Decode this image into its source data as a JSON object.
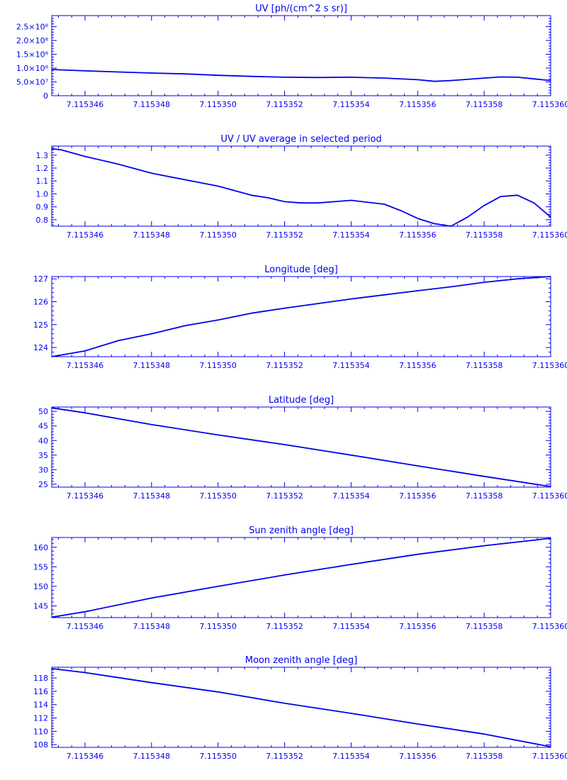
{
  "chart_data": [
    {
      "type": "line",
      "title": "UV [ph/(cm^2 s sr)]",
      "xlabel": "",
      "ylabel": "",
      "xlim": [
        7.115345,
        7.11536
      ],
      "ylim": [
        0,
        290000000
      ],
      "x_ticks": [
        7.115346,
        7.115348,
        7.11535,
        7.115352,
        7.115354,
        7.115356,
        7.115358,
        7.11536
      ],
      "x_tick_labels": [
        "7.115346",
        "7.115348",
        "7.115350",
        "7.115352",
        "7.115354",
        "7.115356",
        "7.115358",
        "7.115360"
      ],
      "y_ticks": [
        0,
        50000000,
        100000000,
        150000000,
        200000000,
        250000000
      ],
      "y_tick_labels": [
        "0",
        "5.0×10⁷",
        "1.0×10⁸",
        "1.5×10⁸",
        "2.0×10⁸",
        "2.5×10⁸"
      ],
      "x": [
        7.115345,
        7.115346,
        7.115347,
        7.115348,
        7.115349,
        7.11535,
        7.115351,
        7.115352,
        7.115353,
        7.115354,
        7.115355,
        7.115356,
        7.1153565,
        7.115357,
        7.115358,
        7.1153585,
        7.115359,
        7.11536
      ],
      "y": [
        95000000,
        90000000,
        86000000,
        82000000,
        79000000,
        74000000,
        70000000,
        67000000,
        66000000,
        67000000,
        64000000,
        58000000,
        52000000,
        55000000,
        64000000,
        68000000,
        67000000,
        55000000
      ]
    },
    {
      "type": "line",
      "title": "UV / UV average in selected period",
      "xlabel": "",
      "ylabel": "",
      "xlim": [
        7.115345,
        7.11536
      ],
      "ylim": [
        0.75,
        1.37
      ],
      "x_ticks": [
        7.115346,
        7.115348,
        7.11535,
        7.115352,
        7.115354,
        7.115356,
        7.115358,
        7.11536
      ],
      "x_tick_labels": [
        "7.115346",
        "7.115348",
        "7.115350",
        "7.115352",
        "7.115354",
        "7.115356",
        "7.115358",
        "7.115360"
      ],
      "y_ticks": [
        0.8,
        0.9,
        1.0,
        1.1,
        1.2,
        1.3
      ],
      "y_tick_labels": [
        "0.8",
        "0.9",
        "1.0",
        "1.1",
        "1.2",
        "1.3"
      ],
      "x": [
        7.115345,
        7.1153453,
        7.115346,
        7.115347,
        7.115348,
        7.115349,
        7.11535,
        7.115351,
        7.1153515,
        7.115352,
        7.1153525,
        7.115353,
        7.1153535,
        7.115354,
        7.115355,
        7.1153555,
        7.115356,
        7.1153565,
        7.115357,
        7.1153575,
        7.115358,
        7.1153585,
        7.115359,
        7.1153595,
        7.11536
      ],
      "y": [
        1.35,
        1.34,
        1.29,
        1.23,
        1.16,
        1.11,
        1.06,
        0.99,
        0.97,
        0.94,
        0.93,
        0.93,
        0.94,
        0.95,
        0.92,
        0.87,
        0.81,
        0.77,
        0.75,
        0.82,
        0.91,
        0.98,
        0.99,
        0.93,
        0.82
      ]
    },
    {
      "type": "line",
      "title": "Longitude [deg]",
      "xlabel": "",
      "ylabel": "",
      "xlim": [
        7.115345,
        7.11536
      ],
      "ylim": [
        123.6,
        127.1
      ],
      "x_ticks": [
        7.115346,
        7.115348,
        7.11535,
        7.115352,
        7.115354,
        7.115356,
        7.115358,
        7.11536
      ],
      "x_tick_labels": [
        "7.115346",
        "7.115348",
        "7.115350",
        "7.115352",
        "7.115354",
        "7.115356",
        "7.115358",
        "7.115360"
      ],
      "y_ticks": [
        124,
        125,
        126,
        127
      ],
      "y_tick_labels": [
        "124",
        "125",
        "126",
        "127"
      ],
      "x": [
        7.115345,
        7.115346,
        7.115347,
        7.115348,
        7.115349,
        7.11535,
        7.115351,
        7.115352,
        7.115353,
        7.115354,
        7.115355,
        7.115356,
        7.115357,
        7.115358,
        7.115359,
        7.11536
      ],
      "y": [
        123.6,
        123.85,
        124.3,
        124.6,
        124.95,
        125.2,
        125.5,
        125.72,
        125.92,
        126.12,
        126.3,
        126.48,
        126.65,
        126.85,
        127.0,
        127.1
      ]
    },
    {
      "type": "line",
      "title": "Latitude [deg]",
      "xlabel": "",
      "ylabel": "",
      "xlim": [
        7.115345,
        7.11536
      ],
      "ylim": [
        24,
        51.5
      ],
      "x_ticks": [
        7.115346,
        7.115348,
        7.11535,
        7.115352,
        7.115354,
        7.115356,
        7.115358,
        7.11536
      ],
      "x_tick_labels": [
        "7.115346",
        "7.115348",
        "7.115350",
        "7.115352",
        "7.115354",
        "7.115356",
        "7.115358",
        "7.115360"
      ],
      "y_ticks": [
        25,
        30,
        35,
        40,
        45,
        50
      ],
      "y_tick_labels": [
        "25",
        "30",
        "35",
        "40",
        "45",
        "50"
      ],
      "x": [
        7.115345,
        7.115346,
        7.115348,
        7.11535,
        7.115352,
        7.115354,
        7.115356,
        7.115358,
        7.11536
      ],
      "y": [
        51.2,
        49.5,
        45.5,
        41.9,
        38.6,
        35.0,
        31.3,
        27.7,
        24.2
      ]
    },
    {
      "type": "line",
      "title": "Sun zenith angle [deg]",
      "xlabel": "",
      "ylabel": "",
      "xlim": [
        7.115345,
        7.11536
      ],
      "ylim": [
        142,
        162.5
      ],
      "x_ticks": [
        7.115346,
        7.115348,
        7.11535,
        7.115352,
        7.115354,
        7.115356,
        7.115358,
        7.11536
      ],
      "x_tick_labels": [
        "7.115346",
        "7.115348",
        "7.115350",
        "7.115352",
        "7.115354",
        "7.115356",
        "7.115358",
        "7.115360"
      ],
      "y_ticks": [
        145,
        150,
        155,
        160
      ],
      "y_tick_labels": [
        "145",
        "150",
        "155",
        "160"
      ],
      "x": [
        7.115345,
        7.115346,
        7.115348,
        7.11535,
        7.115352,
        7.115354,
        7.115356,
        7.115358,
        7.11536
      ],
      "y": [
        142.1,
        143.5,
        147.0,
        150.0,
        152.9,
        155.6,
        158.2,
        160.4,
        162.3
      ]
    },
    {
      "type": "line",
      "title": "Moon zenith angle [deg]",
      "xlabel": "",
      "ylabel": "",
      "xlim": [
        7.115345,
        7.11536
      ],
      "ylim": [
        107.6,
        119.6
      ],
      "x_ticks": [
        7.115346,
        7.115348,
        7.11535,
        7.115352,
        7.115354,
        7.115356,
        7.115358,
        7.11536
      ],
      "x_tick_labels": [
        "7.115346",
        "7.115348",
        "7.115350",
        "7.115352",
        "7.115354",
        "7.115356",
        "7.115358",
        "7.115360"
      ],
      "y_ticks": [
        108,
        110,
        112,
        114,
        116,
        118
      ],
      "y_tick_labels": [
        "108",
        "110",
        "112",
        "114",
        "116",
        "118"
      ],
      "x": [
        7.115345,
        7.115346,
        7.115348,
        7.11535,
        7.115352,
        7.115354,
        7.115356,
        7.115358,
        7.11536
      ],
      "y": [
        119.4,
        118.8,
        117.3,
        115.9,
        114.2,
        112.7,
        111.1,
        109.6,
        107.7
      ]
    }
  ]
}
